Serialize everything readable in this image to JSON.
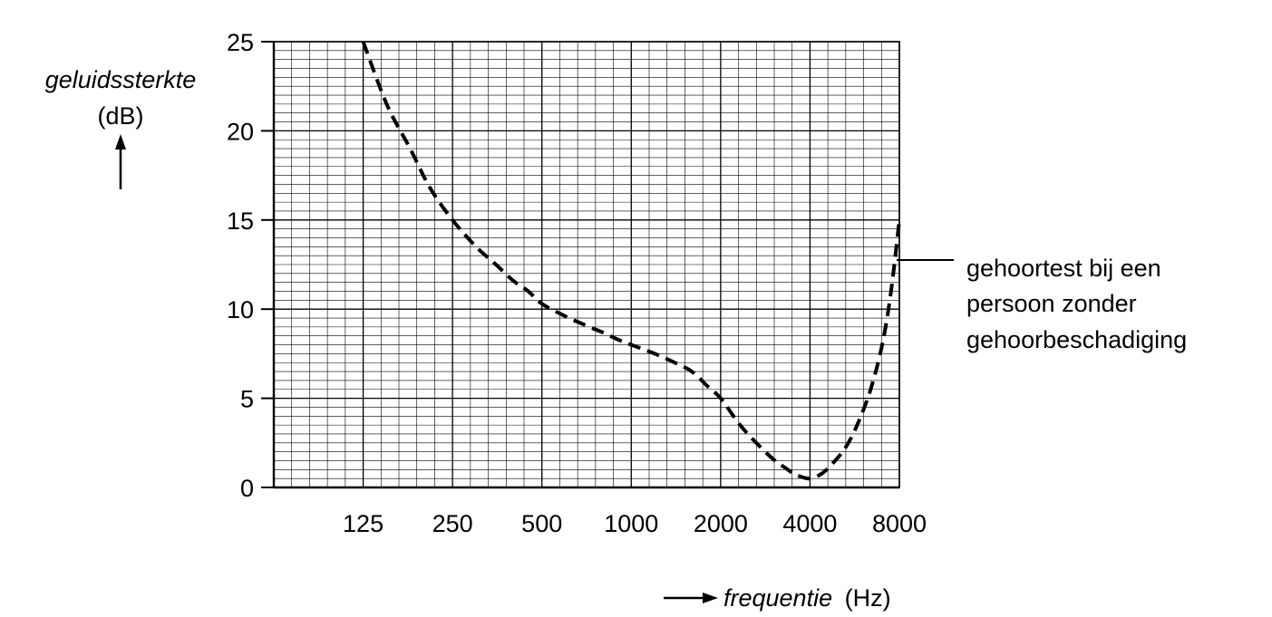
{
  "chart_data": {
    "type": "line",
    "ylabel": "geluidssterkte",
    "ylabel_unit": "(dB)",
    "xlabel": "frequentie",
    "xlabel_unit": "(Hz)",
    "x_scale": "log2",
    "x_ticks": [
      "125",
      "250",
      "500",
      "1000",
      "2000",
      "4000",
      "8000"
    ],
    "y_ticks": [
      "0",
      "5",
      "10",
      "15",
      "20",
      "25"
    ],
    "xlim": [
      62.5,
      8000
    ],
    "ylim": [
      0,
      25
    ],
    "grid": true,
    "series": [
      {
        "name": "gehoortest bij een persoon zonder gehoorbeschadiging",
        "style": "dashed",
        "color": "#000000",
        "x": [
          125,
          150,
          180,
          210,
          250,
          300,
          350,
          400,
          450,
          500,
          600,
          700,
          800,
          900,
          1000,
          1200,
          1400,
          1600,
          1800,
          2000,
          2300,
          2600,
          3000,
          3300,
          3600,
          4000,
          4400,
          4800,
          5300,
          5800,
          6400,
          7000,
          7500,
          8000
        ],
        "y": [
          25,
          21.5,
          19,
          16.8,
          15,
          13.5,
          12.5,
          11.6,
          11,
          10.3,
          9.6,
          9.1,
          8.7,
          8.3,
          8.0,
          7.5,
          7.0,
          6.5,
          5.7,
          5.0,
          3.6,
          2.6,
          1.6,
          1.1,
          0.7,
          0.5,
          0.8,
          1.4,
          2.3,
          3.6,
          5.5,
          8.0,
          11.0,
          15.0
        ]
      }
    ],
    "annotation": {
      "lines": [
        "gehoortest bij een",
        "persoon zonder",
        "gehoorbeschadiging"
      ]
    }
  }
}
